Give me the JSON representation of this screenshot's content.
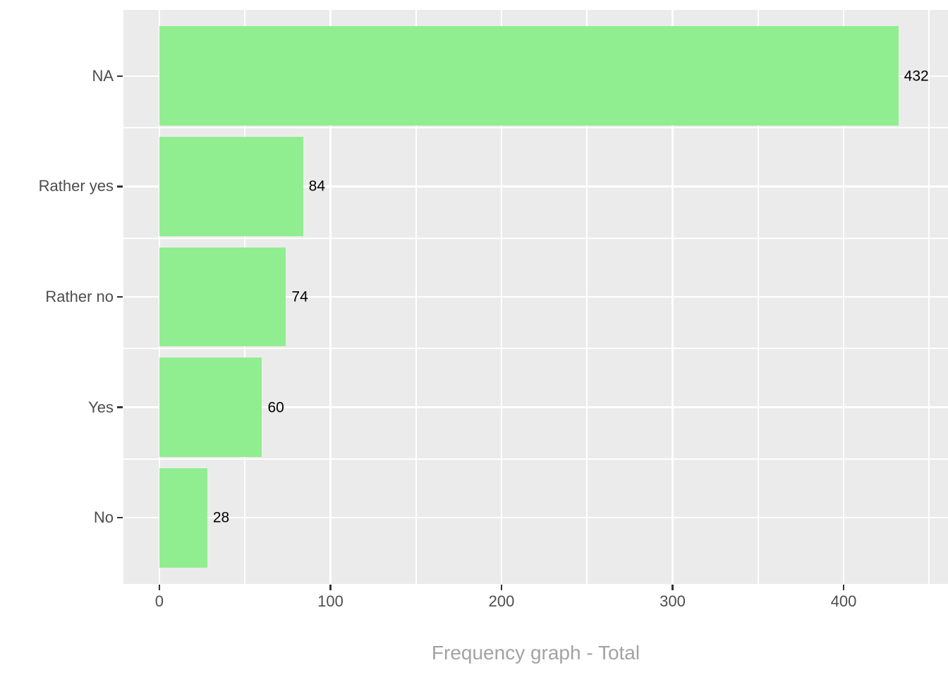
{
  "chart_data": {
    "type": "bar",
    "orientation": "horizontal",
    "title": "Frequency graph - Total",
    "title_position": "bottom-center",
    "categories": [
      "NA",
      "Rather yes",
      "Rather no",
      "Yes",
      "No"
    ],
    "values": [
      432,
      84,
      74,
      60,
      28
    ],
    "bar_labels": [
      "432",
      "84",
      "74",
      "60",
      "28"
    ],
    "x_ticks": [
      0,
      100,
      200,
      300,
      400
    ],
    "x_minor_ticks": [
      50,
      150,
      250,
      350,
      450
    ],
    "xlim": [
      -21,
      461
    ],
    "xlabel": "",
    "ylabel": "",
    "legend": "none",
    "grid": "white major and minor gridlines on gray panel, bars drawn over gridlines",
    "colors": {
      "bar_fill": "#90EE90",
      "panel_background": "#EBEBEB",
      "gridline": "#FFFFFF",
      "tick_mark": "#333333",
      "axis_text": "#4D4D4D",
      "bar_label_text": "#000000",
      "title_text": "#A3A3A3",
      "outer_background": "#FFFFFF"
    }
  }
}
